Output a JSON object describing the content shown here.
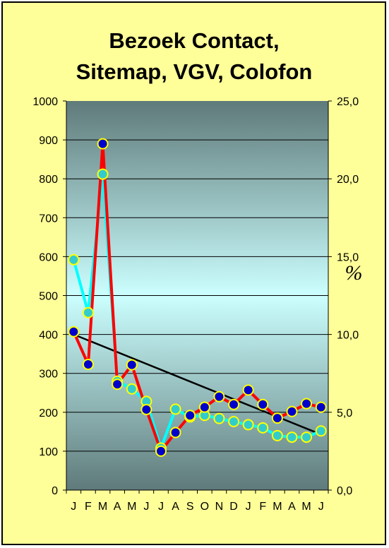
{
  "chart_data": {
    "type": "line",
    "title": [
      "Bezoek Contact,",
      "Sitemap, VGV, Colofon"
    ],
    "categories": [
      "J",
      "F",
      "M",
      "A",
      "M",
      "J",
      "J",
      "A",
      "S",
      "O",
      "N",
      "D",
      "J",
      "F",
      "M",
      "A",
      "M",
      "J"
    ],
    "y_left": {
      "min": 0,
      "max": 1000,
      "step": 100,
      "ticks": [
        "0",
        "100",
        "200",
        "300",
        "400",
        "500",
        "600",
        "700",
        "800",
        "900",
        "1000"
      ]
    },
    "y_right": {
      "min": 0,
      "max": 25,
      "step": 5,
      "ticks": [
        "0,0",
        "5,0",
        "10,0",
        "15,0",
        "20,0",
        "25,0"
      ],
      "label": "%"
    },
    "series": [
      {
        "axis": "left",
        "line_color": "#ff0000",
        "marker_color": "#0000cc",
        "marker_edge": "#ffff00",
        "values": [
          407,
          323,
          890,
          272,
          322,
          207,
          100,
          148,
          192,
          213,
          240,
          220,
          257,
          220,
          185,
          202,
          222,
          213
        ]
      },
      {
        "axis": "right",
        "line_color": "#00ffff",
        "marker_color": "#33cccc",
        "marker_edge": "#ffff00",
        "values": [
          14.8,
          11.4,
          20.3,
          7.0,
          6.5,
          5.7,
          2.7,
          5.2,
          4.7,
          4.8,
          4.6,
          4.4,
          4.2,
          4.0,
          3.5,
          3.4,
          3.4,
          3.8
        ]
      }
    ],
    "trendline": {
      "axis": "left",
      "color": "#000000",
      "start": 400,
      "end": 143
    },
    "grid": true,
    "plot_background": [
      "#5f7a7a",
      "#ccffff",
      "#5f7a7a"
    ]
  }
}
